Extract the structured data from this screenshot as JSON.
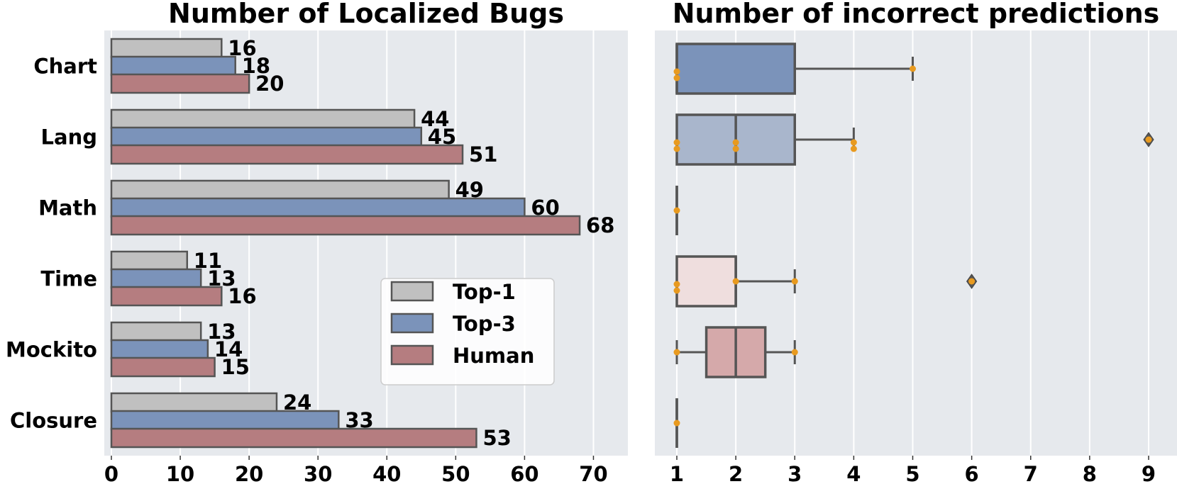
{
  "chart_data": [
    {
      "type": "bar",
      "orientation": "horizontal",
      "title": "Number of Localized Bugs",
      "categories": [
        "Chart",
        "Lang",
        "Math",
        "Time",
        "Mockito",
        "Closure"
      ],
      "series": [
        {
          "name": "Top-1",
          "color": "#c0c0c0",
          "values": [
            16,
            44,
            49,
            11,
            13,
            24
          ]
        },
        {
          "name": "Top-3",
          "color": "#7b93ba",
          "values": [
            18,
            45,
            60,
            13,
            14,
            33
          ]
        },
        {
          "name": "Human",
          "color": "#b57d80",
          "values": [
            20,
            51,
            68,
            16,
            15,
            53
          ]
        }
      ],
      "xlim": [
        0,
        75
      ],
      "xticks": [
        0,
        10,
        20,
        30,
        40,
        50,
        60,
        70
      ],
      "grid": true,
      "legend": "lower-center"
    },
    {
      "type": "box",
      "orientation": "horizontal",
      "title": "Number of incorrect predictions",
      "categories": [
        "Chart",
        "Lang",
        "Math",
        "Time",
        "Mockito",
        "Closure"
      ],
      "boxes": [
        {
          "q1": 1,
          "median": 1,
          "q3": 3,
          "whisker_low": 1,
          "whisker_high": 5,
          "outliers": [],
          "points": [
            1,
            1,
            5
          ],
          "color": "#7b93ba"
        },
        {
          "q1": 1,
          "median": 2,
          "q3": 3,
          "whisker_low": 1,
          "whisker_high": 4,
          "outliers": [
            9
          ],
          "points": [
            1,
            1,
            2,
            2,
            4,
            4
          ],
          "color": "#a9b6cc"
        },
        {
          "q1": 1,
          "median": 1,
          "q3": 1,
          "whisker_low": 1,
          "whisker_high": 1,
          "outliers": [],
          "points": [
            1
          ],
          "color": "#a9b6cc"
        },
        {
          "q1": 1,
          "median": 2,
          "q3": 2,
          "whisker_low": 1,
          "whisker_high": 3,
          "outliers": [
            6
          ],
          "points": [
            1,
            1,
            2,
            3
          ],
          "color": "#efdede"
        },
        {
          "q1": 1.5,
          "median": 2,
          "q3": 2.5,
          "whisker_low": 1,
          "whisker_high": 3,
          "outliers": [],
          "points": [
            1,
            3
          ],
          "color": "#d5a9aa"
        },
        {
          "q1": 1,
          "median": 1,
          "q3": 1,
          "whisker_low": 1,
          "whisker_high": 1,
          "outliers": [],
          "points": [
            1
          ],
          "color": "#a9b6cc"
        }
      ],
      "xlim": [
        0.6,
        9.4
      ],
      "xticks": [
        1,
        2,
        3,
        4,
        5,
        6,
        7,
        8,
        9
      ],
      "grid": true
    }
  ]
}
